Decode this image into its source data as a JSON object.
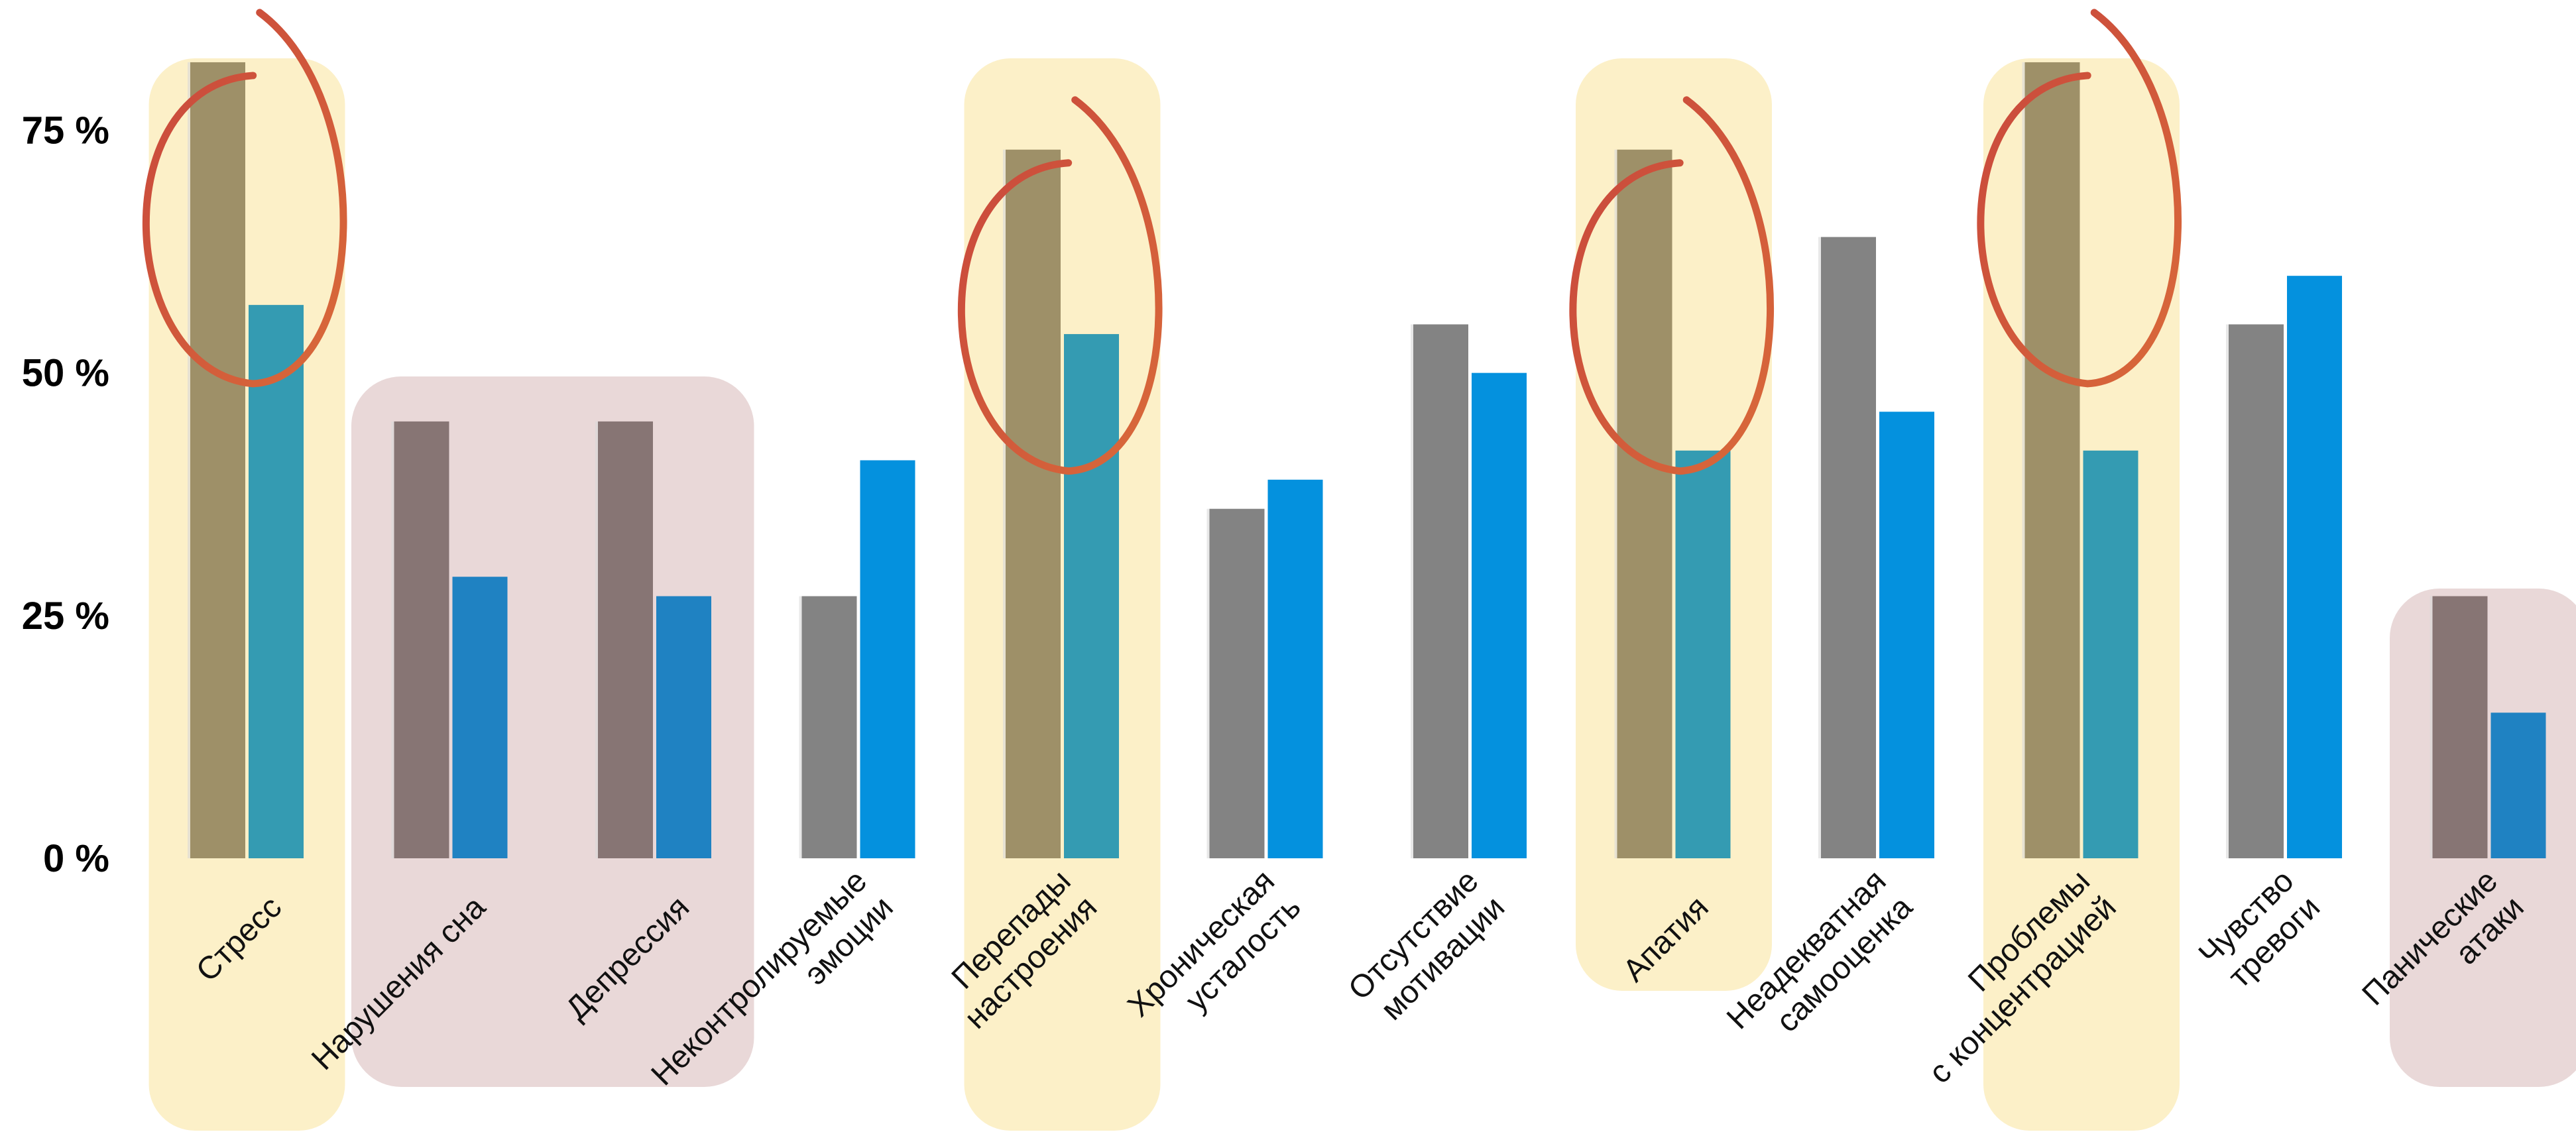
{
  "chart_data": {
    "type": "bar",
    "title": "",
    "xlabel": "",
    "ylabel": "",
    "ylim": [
      0,
      85
    ],
    "yticks": [
      "0 %",
      "25 %",
      "50 %",
      "75 %"
    ],
    "ytick_values": [
      0,
      25,
      50,
      75
    ],
    "grid": false,
    "legend": "none",
    "categories": [
      [
        "Стресс"
      ],
      [
        "Нарушения сна"
      ],
      [
        "Депрессия"
      ],
      [
        "Неконтролируемые",
        "эмоции"
      ],
      [
        "Перепады",
        "настроения"
      ],
      [
        "Хроническая",
        "усталость"
      ],
      [
        "Отсутствие",
        "мотивации"
      ],
      [
        "Апатия"
      ],
      [
        "Неадекватная",
        "самооценка"
      ],
      [
        "Проблемы",
        "с концентрацией"
      ],
      [
        "Чувство",
        "тревоги"
      ],
      [
        "Панические",
        "атаки"
      ]
    ],
    "series": [
      {
        "values": [
          82,
          45,
          45,
          27,
          73,
          36,
          55,
          73,
          64,
          82,
          55,
          27
        ]
      },
      {
        "values": [
          57,
          29,
          27,
          41,
          54,
          39,
          50,
          42,
          46,
          42,
          60,
          15
        ]
      }
    ],
    "highlight_yellow": [
      0,
      4,
      7,
      9
    ],
    "highlight_pink": [
      [
        1,
        2
      ],
      [
        11,
        11
      ]
    ],
    "circled": [
      0,
      4,
      7,
      9
    ],
    "colors": {
      "series1": "#838383",
      "series2": "#0491DE",
      "highlight_yellow": "#FCF0C8",
      "highlight_pink": "#E9D8D8",
      "circle_stroke_a": "#C8463C",
      "circle_stroke_b": "#D96A3A"
    }
  }
}
